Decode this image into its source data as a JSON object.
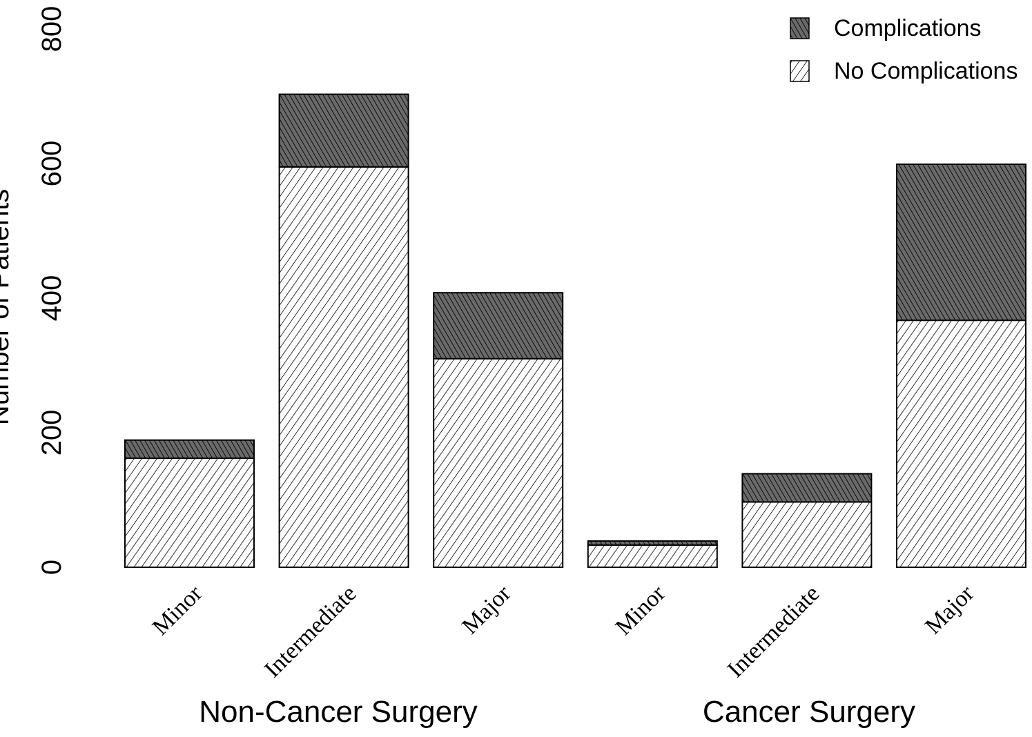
{
  "chart_data": {
    "type": "bar",
    "stacked": true,
    "title": "",
    "ylabel": "Number of Patients",
    "ylim": [
      0,
      800
    ],
    "yticks": [
      0,
      200,
      400,
      600,
      800
    ],
    "groups": [
      {
        "label": "Non-Cancer Surgery",
        "categories": [
          "Minor",
          "Intermediate",
          "Major"
        ]
      },
      {
        "label": "Cancer Surgery",
        "categories": [
          "Minor",
          "Intermediate",
          "Major"
        ]
      }
    ],
    "categories": [
      "Minor",
      "Intermediate",
      "Major",
      "Minor",
      "Intermediate",
      "Major"
    ],
    "series": [
      {
        "name": "No Complications",
        "values": [
          162,
          595,
          310,
          33,
          97,
          367
        ],
        "pattern": "light-hatch"
      },
      {
        "name": "Complications",
        "values": [
          27,
          108,
          98,
          6,
          42,
          232
        ],
        "pattern": "dark-hatch"
      }
    ],
    "legend": {
      "position": "top-right",
      "items": [
        "Complications",
        "No Complications"
      ]
    },
    "colors": {
      "dark_fill": "#555555",
      "light_fill": "#ffffff",
      "stroke": "#000000"
    }
  }
}
